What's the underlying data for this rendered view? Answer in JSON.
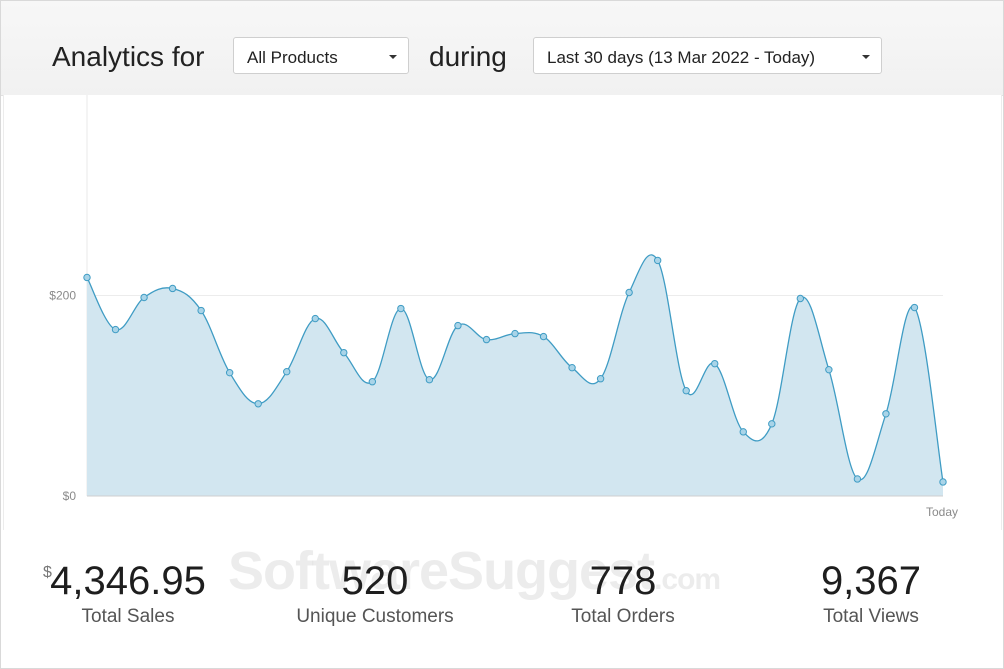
{
  "header": {
    "title": "Analytics for",
    "product_select": "All Products",
    "during_label": "during",
    "period_select": "Last 30 days (13 Mar 2022 - Today)"
  },
  "chart_data": {
    "type": "area",
    "title": "",
    "xlabel": "",
    "ylabel": "",
    "x_tick_labels": [
      "Today"
    ],
    "y_tick_labels": [
      "$200",
      "$0"
    ],
    "ylim": [
      0,
      400
    ],
    "grid": "horizontal",
    "legend": "none",
    "series": [
      {
        "values": [
          218,
          166,
          198,
          207,
          185,
          123,
          92,
          124,
          177,
          143,
          114,
          187,
          116,
          170,
          156,
          162,
          159,
          128,
          117,
          203,
          235,
          105,
          132,
          64,
          72,
          197,
          126,
          17,
          82,
          188,
          14
        ]
      }
    ]
  },
  "stats": {
    "currency_symbol": "$",
    "total_sales": "4,346.95",
    "total_sales_label": "Total Sales",
    "unique_customers": "520",
    "unique_customers_label": "Unique Customers",
    "total_orders": "778",
    "total_orders_label": "Total Orders",
    "total_views": "9,367",
    "total_views_label": "Total Views"
  },
  "watermark": {
    "main": "SoftwareSuggest",
    "suffix": ".com"
  },
  "colors": {
    "line": "#3f9cc4",
    "fill": "#d2e6f0",
    "point_fill": "#a9d4e8"
  }
}
